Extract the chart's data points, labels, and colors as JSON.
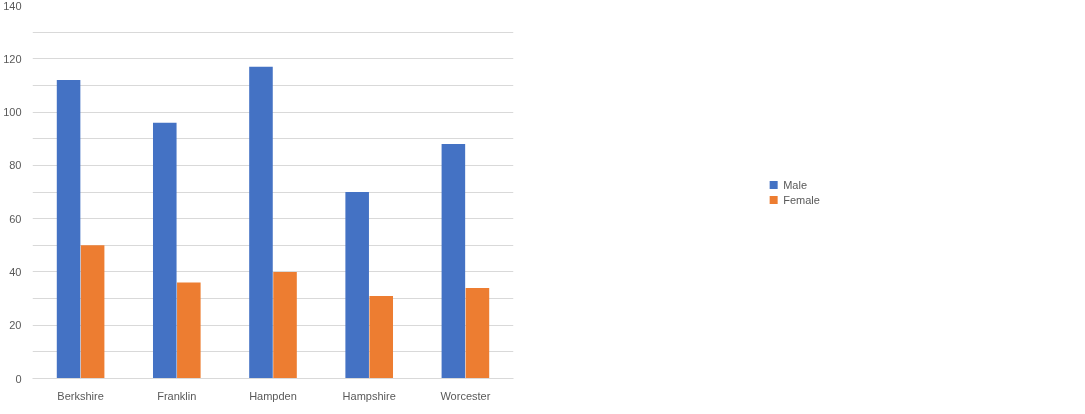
{
  "chart_data": {
    "type": "bar",
    "categories": [
      "Berkshire",
      "Franklin",
      "Hampden",
      "Hampshire",
      "Worcester"
    ],
    "series": [
      {
        "name": "Male",
        "color": "#4472c4",
        "values": [
          112,
          96,
          117,
          70,
          88
        ]
      },
      {
        "name": "Female",
        "color": "#ed7d31",
        "values": [
          50,
          36,
          40,
          31,
          34
        ]
      }
    ],
    "ylim": [
      0,
      140
    ],
    "yticks": [
      0,
      {
        "value": 10,
        "label": null
      },
      20,
      {
        "value": 30,
        "label": null
      },
      40,
      {
        "value": 50,
        "label": null
      },
      60,
      {
        "value": 70,
        "label": null
      },
      80,
      {
        "value": 90,
        "label": null
      },
      100,
      {
        "value": 110,
        "label": null
      },
      120,
      {
        "value": 130,
        "label": null
      },
      140
    ],
    "grid": "y",
    "legend": "right"
  }
}
